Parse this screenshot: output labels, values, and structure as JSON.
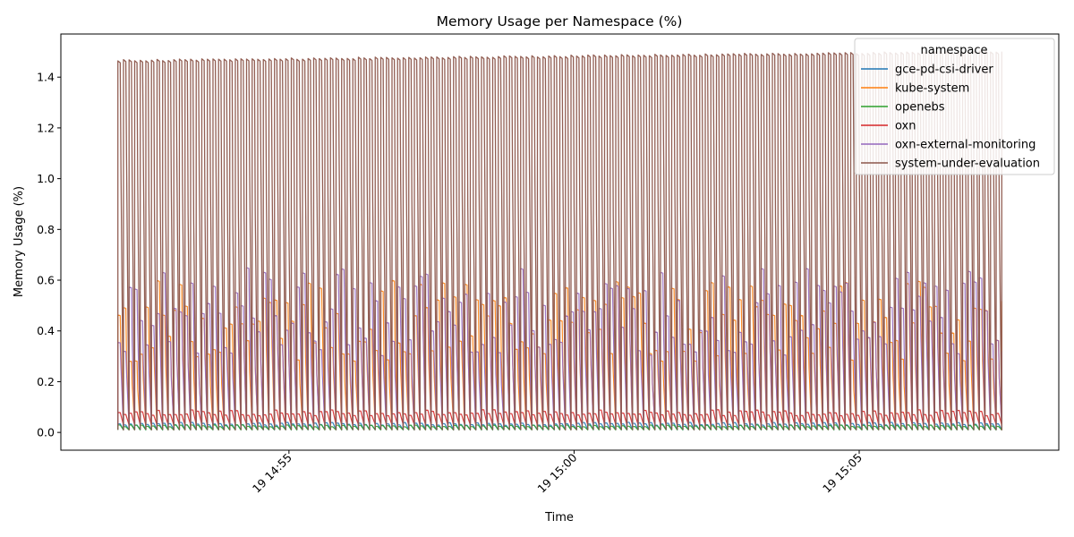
{
  "chart_data": {
    "type": "line",
    "title": "Memory Usage per Namespace (%)",
    "xlabel": "Time",
    "ylabel": "Memory Usage (%)",
    "x_start": "19 14:52",
    "x_end": "19 15:07:30",
    "xlim": [
      "19 14:51:00",
      "19 15:08:30"
    ],
    "ylim": [
      -0.07,
      1.57
    ],
    "y_ticks": [
      0.0,
      0.2,
      0.4,
      0.6,
      0.8,
      1.0,
      1.2,
      1.4
    ],
    "y_tick_labels": [
      "0.0",
      "0.2",
      "0.4",
      "0.6",
      "0.8",
      "1.0",
      "1.2",
      "1.4"
    ],
    "x_ticks": [
      "19 14:55",
      "19 15:00",
      "19 15:05"
    ],
    "grid": false,
    "legend": {
      "title": "namespace",
      "placement": "top-right"
    },
    "cycle_count": 158,
    "series": [
      {
        "name": "gce-pd-csi-driver",
        "color": "#1f77b4",
        "min": 0.01,
        "max": 0.04
      },
      {
        "name": "kube-system",
        "color": "#ff7f0e",
        "min": 0.02,
        "max": 0.6
      },
      {
        "name": "openebs",
        "color": "#2ca02c",
        "min": 0.01,
        "max": 0.03
      },
      {
        "name": "oxn",
        "color": "#d62728",
        "min": 0.03,
        "max": 0.09
      },
      {
        "name": "oxn-external-monitoring",
        "color": "#9467bd",
        "min": 0.02,
        "max": 0.65
      },
      {
        "name": "system-under-evaluation",
        "color": "#8c564b",
        "min": 0.01,
        "max": 1.5
      }
    ]
  }
}
